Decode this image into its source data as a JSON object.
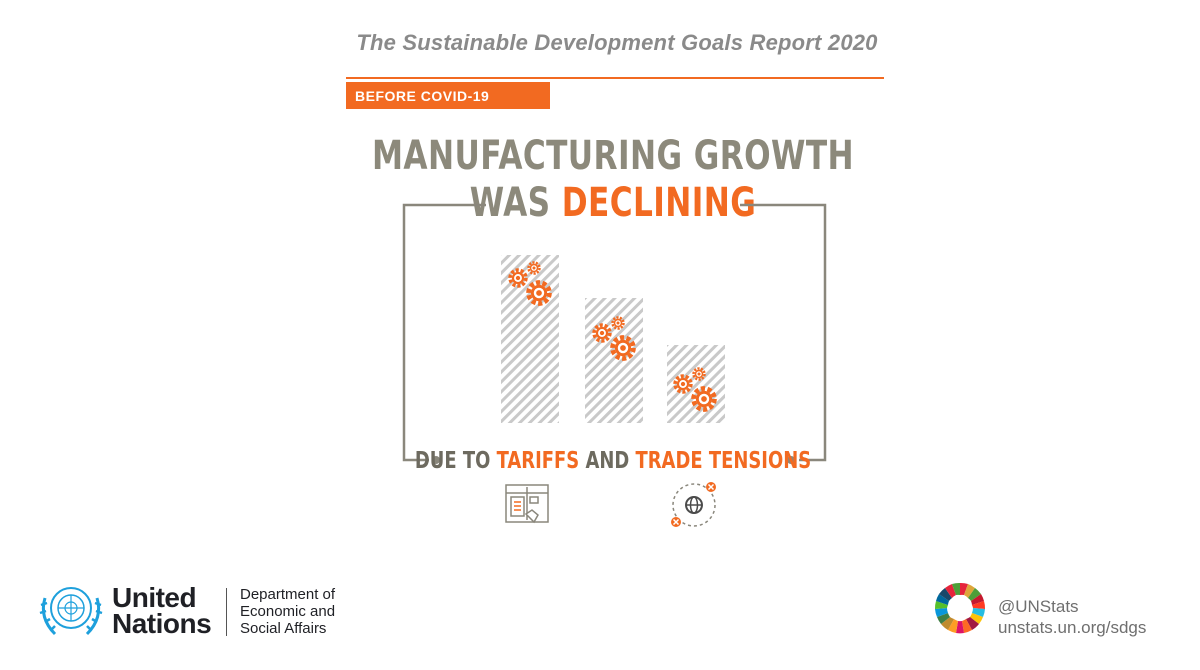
{
  "report_title": "The Sustainable Development Goals Report 2020",
  "badge": "BEFORE COVID-19",
  "headline": {
    "line1": "MANUFACTURING GROWTH",
    "line2_prefix": "WAS ",
    "line2_highlight": "DECLINING"
  },
  "subline": {
    "part1": "DUE TO ",
    "tariffs": "TARIFFS",
    "part2": " AND ",
    "trade_tensions": "TRADE TENSIONS"
  },
  "un": {
    "name_line1": "United",
    "name_line2": "Nations",
    "department_line1": "Department of",
    "department_line2": "Economic and",
    "department_line3": "Social Affairs"
  },
  "social": {
    "handle": "@UNStats",
    "url": "unstats.un.org/sdgs"
  },
  "colors": {
    "accent": "#f26a21",
    "headline_grey": "#8c897b",
    "frame_grey": "#8a877c"
  },
  "icons": [
    "gears-icon",
    "tariff-document-icon",
    "globe-trade-icon",
    "un-emblem-icon",
    "sdg-wheel-icon"
  ]
}
